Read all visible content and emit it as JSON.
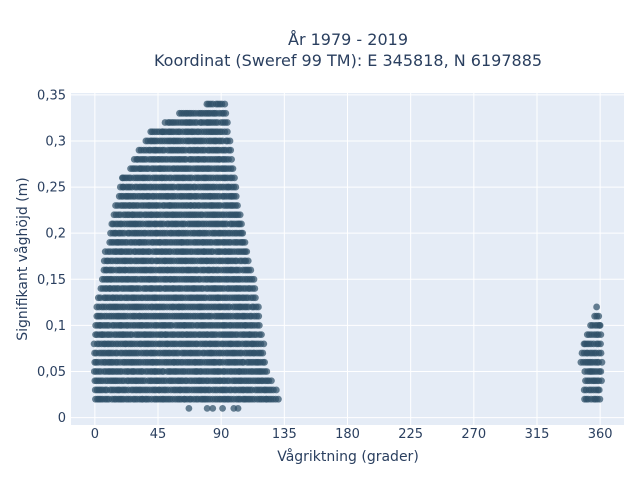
{
  "chart_data": {
    "type": "scatter",
    "title_line1": "År 1979 - 2019",
    "title_line2": "Koordinat (Sweref 99 TM): E 345818, N 6197885",
    "xlabel": "Vågriktning (grader)",
    "ylabel": "Signifikant våghöjd (m)",
    "xlim": [
      -17,
      377
    ],
    "ylim": [
      -0.008,
      0.352
    ],
    "x_ticks": [
      0,
      45,
      90,
      135,
      180,
      225,
      270,
      315,
      360
    ],
    "x_tick_labels": [
      "0",
      "45",
      "90",
      "135",
      "180",
      "225",
      "270",
      "315",
      "360"
    ],
    "y_ticks": [
      0,
      0.05,
      0.1,
      0.15,
      0.2,
      0.25,
      0.3,
      0.35
    ],
    "y_tick_labels": [
      "0",
      "0,05",
      "0,1",
      "0,15",
      "0,2",
      "0,25",
      "0,3",
      "0,35"
    ],
    "grid": true,
    "marker_color": "#2f5068",
    "plot_bg": "#e5ecf6",
    "y_step": 0.01,
    "clusters": [
      {
        "name": "",
        "profile": [
          [
            0.02,
            0,
            131
          ],
          [
            0.03,
            0,
            130
          ],
          [
            0.04,
            0,
            127
          ],
          [
            0.05,
            0,
            124
          ],
          [
            0.06,
            0,
            122
          ],
          [
            0.07,
            0,
            121
          ],
          [
            0.08,
            0,
            120
          ],
          [
            0.09,
            0,
            119
          ],
          [
            0.1,
            0,
            118
          ],
          [
            0.11,
            1,
            117
          ],
          [
            0.12,
            2,
            116
          ],
          [
            0.13,
            3,
            115
          ],
          [
            0.14,
            4,
            114
          ],
          [
            0.15,
            5,
            113
          ],
          [
            0.16,
            6,
            111
          ],
          [
            0.17,
            7,
            110
          ],
          [
            0.18,
            8,
            109
          ],
          [
            0.19,
            10,
            108
          ],
          [
            0.2,
            11,
            106
          ],
          [
            0.21,
            12,
            105
          ],
          [
            0.22,
            14,
            104
          ],
          [
            0.23,
            15,
            103
          ],
          [
            0.24,
            17,
            102
          ],
          [
            0.25,
            18,
            101
          ],
          [
            0.26,
            20,
            100
          ],
          [
            0.27,
            25,
            99
          ],
          [
            0.28,
            28,
            98
          ],
          [
            0.29,
            32,
            97
          ],
          [
            0.3,
            36,
            96
          ],
          [
            0.31,
            40,
            95
          ],
          [
            0.32,
            52,
            94
          ],
          [
            0.33,
            60,
            93
          ],
          [
            0.34,
            80,
            92
          ]
        ],
        "outliers": [
          [
            67,
            0.01
          ],
          [
            80,
            0.01
          ],
          [
            84,
            0.01
          ],
          [
            91,
            0.01
          ],
          [
            99,
            0.01
          ],
          [
            102,
            0.01
          ],
          [
            20,
            0.26
          ],
          [
            48,
            0.31
          ],
          [
            50,
            0.32
          ]
        ]
      },
      {
        "name": "",
        "profile": [
          [
            0.02,
            349,
            360
          ],
          [
            0.03,
            349,
            360
          ],
          [
            0.04,
            349,
            361
          ],
          [
            0.05,
            349,
            361
          ],
          [
            0.06,
            346,
            361
          ],
          [
            0.07,
            347,
            361
          ],
          [
            0.08,
            348,
            361
          ],
          [
            0.09,
            351,
            361
          ],
          [
            0.1,
            353,
            361
          ],
          [
            0.11,
            356,
            359
          ],
          [
            0.12,
            358,
            358
          ]
        ],
        "outliers": []
      }
    ]
  }
}
